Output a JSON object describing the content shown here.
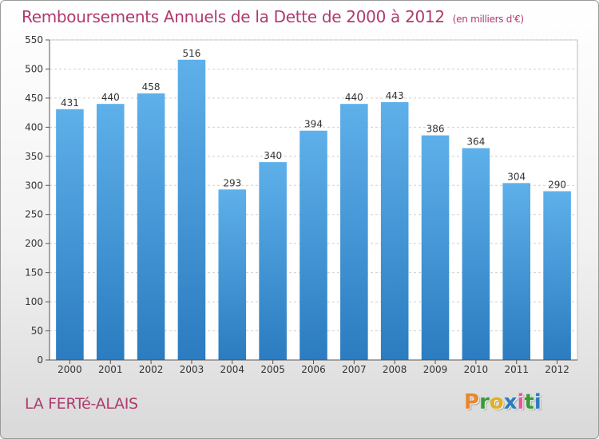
{
  "header": {
    "title": "Remboursements Annuels de la Dette de 2000 à 2012",
    "unit": "(en milliers d'€)"
  },
  "footer": {
    "commune": "LA FERTé-ALAIS",
    "logo_letters": [
      "P",
      "r",
      "o",
      "x",
      "i",
      "t",
      "i"
    ]
  },
  "colors": {
    "title": "#b03a6e",
    "bar_top": "#5eb0ea",
    "bar_bottom": "#2b7cc0",
    "logo": [
      "#e8862a",
      "#3a9a3a",
      "#e0b020",
      "#2a7cc0",
      "#e05a9a",
      "#3a9a3a",
      "#2a7cc0"
    ]
  },
  "chart_data": {
    "type": "bar",
    "categories": [
      "2000",
      "2001",
      "2002",
      "2003",
      "2004",
      "2005",
      "2006",
      "2007",
      "2008",
      "2009",
      "2010",
      "2011",
      "2012"
    ],
    "values": [
      431,
      440,
      458,
      516,
      293,
      340,
      394,
      440,
      443,
      386,
      364,
      304,
      290
    ],
    "ylim": [
      0,
      550
    ],
    "yticks": [
      0,
      50,
      100,
      150,
      200,
      250,
      300,
      350,
      400,
      450,
      500,
      550
    ],
    "grid": true
  }
}
